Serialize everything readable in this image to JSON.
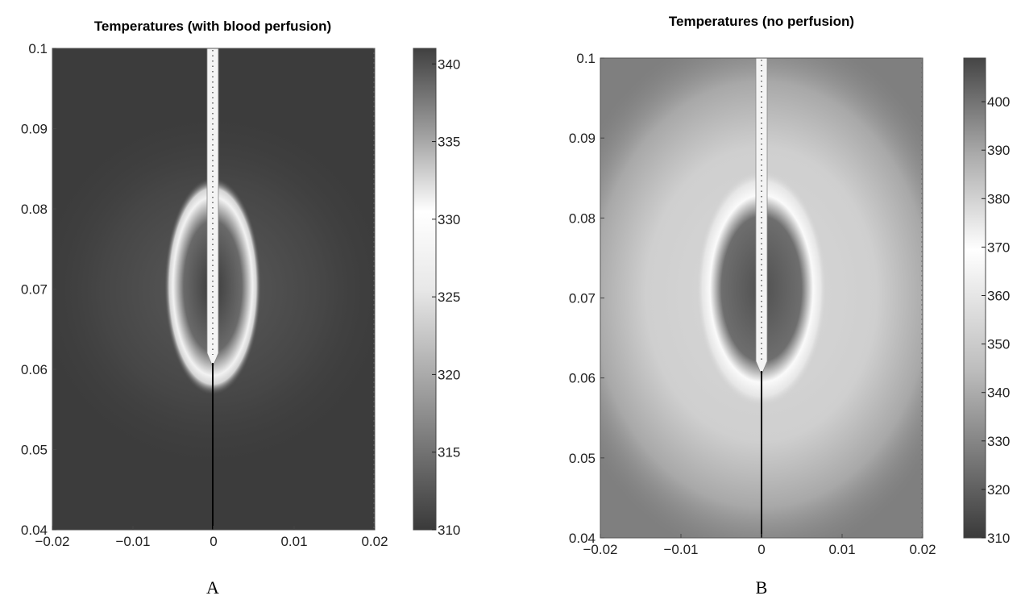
{
  "chart_data": [
    {
      "type": "heatmap",
      "panel_label": "A",
      "title": "Temperatures (with blood perfusion)",
      "xlabel": "",
      "ylabel": "",
      "xlim": [
        -0.02,
        0.02
      ],
      "ylim": [
        0.04,
        0.1
      ],
      "x_ticks": [
        -0.02,
        -0.01,
        0,
        0.01,
        0.02
      ],
      "x_tick_labels": [
        "−0.02",
        "−0.01",
        "0",
        "0.01",
        "0.02"
      ],
      "y_ticks": [
        0.04,
        0.05,
        0.06,
        0.07,
        0.08,
        0.09,
        0.1
      ],
      "y_tick_labels": [
        "0.04",
        "0.05",
        "0.06",
        "0.07",
        "0.08",
        "0.09",
        "0.1"
      ],
      "colorbar": {
        "range": [
          310,
          341
        ],
        "ticks": [
          310,
          315,
          320,
          325,
          330,
          335,
          340
        ],
        "tick_labels": [
          "310",
          "315",
          "320",
          "325",
          "330",
          "335",
          "340"
        ],
        "colormap": "grayscale, dark at both ends, white at middle (~330)"
      },
      "regions": [
        {
          "name": "background tissue",
          "approx_value": 312
        },
        {
          "name": "ellipse ring around probe tip, x -0.005..0.005, y 0.058..0.082",
          "approx_value": 328
        },
        {
          "name": "electrode shaft along x=0 from y=0.06 to y=0.1",
          "approx_value": 331
        }
      ],
      "probe": {
        "x": 0,
        "shaft_y": [
          0.061,
          0.1
        ],
        "wire_y": [
          0.04,
          0.061
        ]
      }
    },
    {
      "type": "heatmap",
      "panel_label": "B",
      "title": "Temperatures (no perfusion)",
      "xlabel": "",
      "ylabel": "",
      "xlim": [
        -0.02,
        0.02
      ],
      "ylim": [
        0.04,
        0.1
      ],
      "x_ticks": [
        -0.02,
        -0.01,
        0,
        0.01,
        0.02
      ],
      "x_tick_labels": [
        "−0.02",
        "−0.01",
        "0",
        "0.01",
        "0.02"
      ],
      "y_ticks": [
        0.04,
        0.05,
        0.06,
        0.07,
        0.08,
        0.09,
        0.1
      ],
      "y_tick_labels": [
        "0.04",
        "0.05",
        "0.06",
        "0.07",
        "0.08",
        "0.09",
        "0.1"
      ],
      "colorbar": {
        "range": [
          310,
          409
        ],
        "ticks": [
          310,
          320,
          330,
          340,
          350,
          360,
          370,
          380,
          390,
          400
        ],
        "tick_labels": [
          "310",
          "320",
          "330",
          "340",
          "350",
          "360",
          "370",
          "380",
          "390",
          "400"
        ],
        "colormap": "grayscale, dark at both ends, white at middle (~370)"
      },
      "regions": [
        {
          "name": "background tissue",
          "approx_value": 335
        },
        {
          "name": "broad halo, x -0.017..0.017, y 0.042..0.098",
          "approx_value": 360
        },
        {
          "name": "bright ring around core",
          "approx_value": 372
        },
        {
          "name": "hot core around probe, x -0.005..0.005, y 0.06..0.082",
          "approx_value": 400
        },
        {
          "name": "electrode shaft along x=0 from y=0.061 to y=0.1",
          "approx_value": 370
        }
      ],
      "probe": {
        "x": 0,
        "shaft_y": [
          0.061,
          0.1
        ],
        "wire_y": [
          0.04,
          0.061
        ]
      }
    }
  ]
}
